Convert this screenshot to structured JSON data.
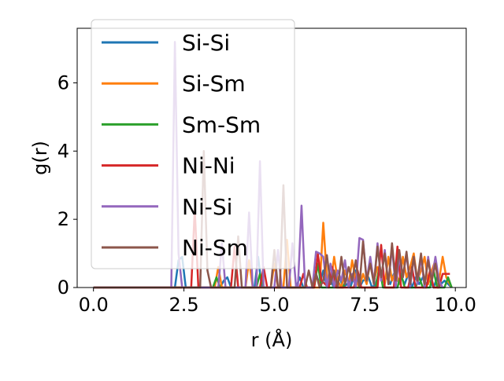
{
  "chart_data": {
    "type": "line",
    "title": "",
    "xlabel": "r (Å)",
    "ylabel": "g(r)",
    "xlim": [
      -0.45,
      10.3
    ],
    "ylim": [
      0,
      7.6
    ],
    "xticks": [
      0.0,
      2.5,
      5.0,
      7.5,
      10.0
    ],
    "xtick_labels": [
      "0.0",
      "2.5",
      "5.0",
      "7.5",
      "10.0"
    ],
    "yticks": [
      0,
      2,
      4,
      6
    ],
    "ytick_labels": [
      "0",
      "2",
      "4",
      "6"
    ],
    "grid": false,
    "legend_position": "upper-left",
    "series": [
      {
        "name": "Si-Si",
        "color": "#1f77b4",
        "x": [
          0,
          2.25,
          2.35,
          2.45,
          2.55,
          3.5,
          3.6,
          3.7,
          3.8,
          4.45,
          4.55,
          4.65,
          5.6,
          5.7,
          5.8,
          6.05,
          6.15,
          6.25,
          6.35,
          6.45,
          6.55,
          6.65,
          6.8,
          6.9,
          7.0,
          7.1,
          7.25,
          7.35,
          7.45,
          7.6,
          7.7,
          7.8,
          7.9,
          8.0,
          8.1,
          8.2,
          8.3,
          8.4,
          8.5,
          8.6,
          8.7,
          8.8,
          8.9,
          9.0,
          9.1,
          9.2,
          9.3,
          9.4,
          9.5,
          9.6,
          9.7,
          9.9
        ],
        "y": [
          0,
          0,
          0.8,
          0.9,
          0,
          0,
          0.2,
          0.3,
          0,
          0,
          0.9,
          0,
          0,
          0.3,
          0,
          0,
          0.4,
          0.1,
          0.5,
          0,
          0.2,
          0,
          0.3,
          0,
          0.1,
          0,
          0.5,
          0,
          0.2,
          0.3,
          0,
          0.1,
          0.5,
          0.2,
          0.3,
          0.1,
          0.4,
          0.2,
          0.3,
          0.1,
          0.4,
          0,
          0.3,
          0.1,
          0.3,
          0.1,
          0.2,
          0,
          0.3,
          0.1,
          0.2,
          0
        ]
      },
      {
        "name": "Si-Sm",
        "color": "#ff7f0e",
        "x": [
          0,
          3.35,
          3.45,
          3.55,
          4.2,
          4.3,
          4.4,
          4.9,
          5.0,
          5.1,
          5.25,
          5.35,
          5.45,
          6.25,
          6.35,
          6.45,
          6.55,
          6.65,
          6.75,
          6.85,
          6.95,
          7.05,
          7.15,
          7.25,
          7.35,
          7.45,
          7.55,
          7.65,
          7.75,
          7.85,
          7.95,
          8.05,
          8.15,
          8.25,
          8.35,
          8.45,
          8.55,
          8.65,
          8.75,
          8.85,
          8.95,
          9.05,
          9.15,
          9.25,
          9.35,
          9.45,
          9.55,
          9.65,
          9.75,
          9.9
        ],
        "y": [
          0,
          0,
          0.6,
          0,
          0,
          0.8,
          0,
          0,
          0.7,
          0,
          0,
          1.4,
          0,
          0,
          1.9,
          0.3,
          0.1,
          0.9,
          0.2,
          0,
          0.5,
          0.1,
          0.8,
          0.2,
          0,
          0.4,
          0.1,
          0.8,
          0.2,
          0.6,
          0.4,
          0.1,
          0.9,
          0.2,
          0.5,
          0.1,
          0.9,
          0.3,
          0.6,
          1.0,
          0.2,
          0.5,
          0.9,
          0.1,
          0.5,
          0.8,
          0.2,
          0.9,
          0.3,
          0
        ]
      },
      {
        "name": "Sm-Sm",
        "color": "#2ca02c",
        "x": [
          0,
          3.3,
          3.4,
          3.5,
          4.5,
          4.6,
          4.7,
          6.1,
          6.2,
          6.3,
          6.9,
          7.0,
          7.1,
          7.8,
          7.9,
          8.0,
          8.4,
          8.5,
          8.6,
          8.9,
          9.0,
          9.1,
          9.3,
          9.4,
          9.5,
          9.7,
          9.8,
          9.9
        ],
        "y": [
          0,
          0,
          0.3,
          0,
          0,
          0.4,
          0,
          0,
          0.7,
          0,
          0,
          0.3,
          0,
          0,
          0.6,
          0,
          0,
          0.4,
          0,
          0,
          0.3,
          0,
          0,
          0.5,
          0,
          0,
          0.3,
          0
        ]
      },
      {
        "name": "Ni-Ni",
        "color": "#d62728",
        "x": [
          0,
          2.7,
          2.8,
          2.9,
          3.8,
          3.9,
          4.0,
          4.6,
          4.7,
          4.8,
          5.7,
          5.8,
          5.9,
          6.1,
          6.2,
          6.3,
          6.5,
          6.6,
          6.7,
          7.2,
          7.3,
          7.4,
          7.85,
          7.95,
          8.05,
          8.3,
          8.4,
          8.5,
          8.7,
          8.8,
          8.9,
          9.2,
          9.3,
          9.4,
          9.55,
          9.65,
          9.75,
          9.85
        ],
        "y": [
          0,
          0,
          2.3,
          0,
          0,
          1.2,
          0,
          0,
          0.6,
          0,
          0,
          0.4,
          0,
          0,
          1.0,
          0.2,
          0,
          0.6,
          0,
          0,
          0.5,
          0,
          0,
          1.25,
          0,
          0,
          1.2,
          0,
          0,
          0.6,
          0,
          0,
          0.5,
          0,
          0,
          0.4,
          0.4,
          0.4
        ]
      },
      {
        "name": "Ni-Si",
        "color": "#9467bd",
        "x": [
          0,
          2.15,
          2.25,
          2.35,
          2.45,
          3.45,
          3.55,
          3.65,
          4.2,
          4.3,
          4.4,
          4.5,
          4.6,
          4.7,
          5.0,
          5.1,
          5.2,
          5.4,
          5.5,
          5.6,
          5.65,
          5.75,
          5.85,
          6.05,
          6.15,
          6.25,
          6.35,
          6.45,
          6.55,
          6.65,
          6.75,
          6.85,
          6.95,
          7.05,
          7.15,
          7.25,
          7.35,
          7.45,
          7.55,
          7.65,
          7.75,
          7.85,
          7.95,
          8.05,
          8.15,
          8.25,
          8.35,
          8.45,
          8.55,
          8.65,
          8.75,
          8.85,
          8.95,
          9.05,
          9.15,
          9.25,
          9.35,
          9.45,
          9.55,
          9.65
        ],
        "y": [
          0,
          0,
          7.2,
          1.0,
          0,
          0,
          1.3,
          0,
          0,
          2.2,
          0,
          0,
          3.7,
          0,
          0,
          1.1,
          0,
          0,
          1.3,
          0,
          0,
          2.4,
          0,
          0,
          1.05,
          1.0,
          0.9,
          0,
          0.7,
          0,
          0.5,
          0.2,
          0.8,
          0,
          0.4,
          0,
          1.45,
          1.4,
          0.2,
          0.9,
          0.1,
          1.3,
          0.2,
          1.1,
          0.1,
          1.2,
          0,
          0.9,
          0.3,
          1.0,
          0,
          0.9,
          0.1,
          0.9,
          0,
          0.9,
          0.2,
          0.9,
          0.2,
          0
        ]
      },
      {
        "name": "Ni-Sm",
        "color": "#8c564b",
        "x": [
          0,
          2.95,
          3.05,
          3.15,
          3.25,
          3.9,
          4.0,
          4.1,
          4.9,
          5.0,
          5.1,
          5.15,
          5.25,
          5.35,
          5.85,
          5.95,
          6.05,
          6.15,
          6.25,
          6.35,
          6.45,
          6.55,
          6.65,
          6.75,
          6.85,
          6.95,
          7.05,
          7.15,
          7.25,
          7.35,
          7.45,
          7.55,
          7.65,
          7.75,
          7.85,
          7.95,
          8.05,
          8.15,
          8.25,
          8.35,
          8.45,
          8.55,
          8.65,
          8.75,
          8.85,
          8.95,
          9.05,
          9.15,
          9.25,
          9.35,
          9.45,
          9.55
        ],
        "y": [
          0,
          0,
          4.0,
          0.5,
          0,
          0,
          1.5,
          0,
          0,
          1.1,
          0,
          0,
          3.0,
          0,
          0,
          0.5,
          0,
          0.4,
          0,
          0.2,
          0.95,
          0.1,
          0.5,
          0,
          0.9,
          0.1,
          0.6,
          0.2,
          0.8,
          0,
          1.35,
          0.2,
          0.7,
          0.1,
          1.2,
          0.3,
          1.0,
          0.1,
          1.3,
          0.2,
          1.1,
          0.3,
          1.05,
          0.1,
          0.9,
          0.2,
          1.0,
          0.1,
          0.8,
          0.2,
          0.7,
          0
        ]
      }
    ]
  }
}
